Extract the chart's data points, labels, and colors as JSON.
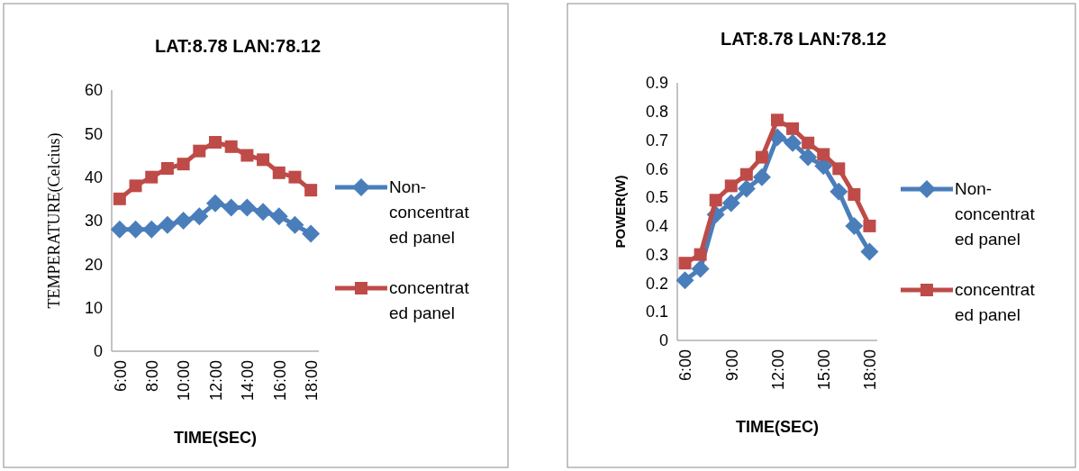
{
  "chart_data": [
    {
      "type": "line",
      "title": "LAT:8.78 LAN:78.12",
      "xlabel": "TIME(SEC)",
      "ylabel": "TEMPERATURE(Celcius)",
      "categories": [
        "6:00",
        null,
        "8:00",
        null,
        "10:00",
        null,
        "12:00",
        null,
        "14:00",
        null,
        "16:00",
        null,
        "18:00"
      ],
      "ylim": [
        0,
        60
      ],
      "yticks": [
        0,
        10,
        20,
        30,
        40,
        50,
        60
      ],
      "grid": false,
      "legend": "right",
      "series": [
        {
          "name": "Non-concentrated panel",
          "color": "#4a7ebb",
          "marker": "diamond",
          "values": [
            28,
            28,
            28,
            29,
            30,
            31,
            34,
            33,
            33,
            32,
            31,
            29,
            27
          ]
        },
        {
          "name": "concentrated panel",
          "color": "#be4b48",
          "marker": "square",
          "values": [
            35,
            38,
            40,
            42,
            43,
            46,
            48,
            47,
            45,
            44,
            41,
            40,
            37
          ]
        }
      ]
    },
    {
      "type": "line",
      "title": "LAT:8.78 LAN:78.12",
      "xlabel": "TIME(SEC)",
      "ylabel": "POWER(W)",
      "categories": [
        "6:00",
        null,
        null,
        "9:00",
        null,
        null,
        "12:00",
        null,
        null,
        "15:00",
        null,
        null,
        "18:00"
      ],
      "ylim": [
        0,
        0.9
      ],
      "yticks": [
        0,
        0.1,
        0.2,
        0.3,
        0.4,
        0.5,
        0.6,
        0.7,
        0.8,
        0.9
      ],
      "grid": false,
      "legend": "right",
      "series": [
        {
          "name": "Non-concentrated panel",
          "color": "#4a7ebb",
          "marker": "diamond",
          "values": [
            0.21,
            0.25,
            0.44,
            0.48,
            0.53,
            0.57,
            0.71,
            0.69,
            0.64,
            0.61,
            0.52,
            0.4,
            0.31
          ]
        },
        {
          "name": "concentrated panel",
          "color": "#be4b48",
          "marker": "square",
          "values": [
            0.27,
            0.3,
            0.49,
            0.54,
            0.58,
            0.64,
            0.77,
            0.74,
            0.69,
            0.65,
            0.6,
            0.51,
            0.4
          ]
        }
      ]
    }
  ]
}
